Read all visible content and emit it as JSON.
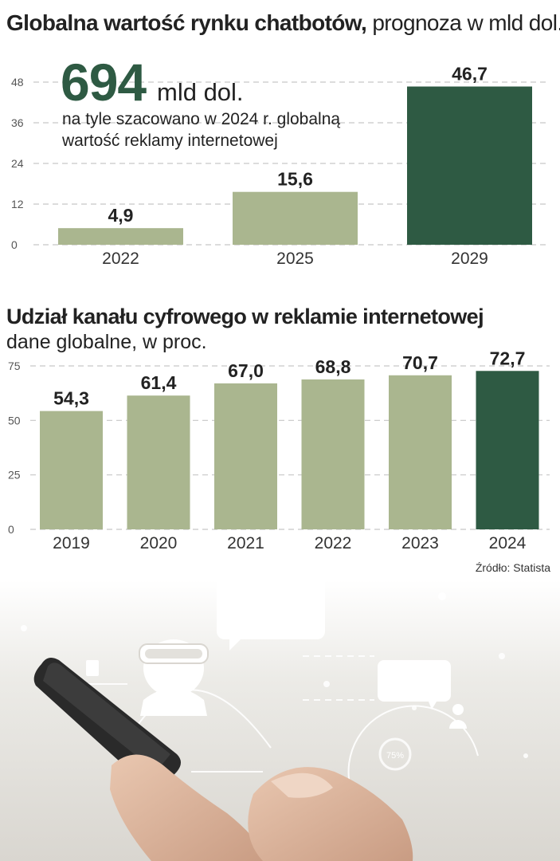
{
  "chart1_title_bold": "Globalna wartość rynku chatbotów,",
  "chart1_title_rest": " prognoza w mld dol.",
  "callout": {
    "value": "694",
    "unit": "mld dol.",
    "text": "na tyle szacowano w 2024 r. globalną wartość reklamy internetowej"
  },
  "chart2_title": "Udział kanału cyfrowego w reklamie internetowej",
  "chart2_subtitle": "dane globalne, w proc.",
  "source": "Źródło: Statista",
  "illustration_badge": "75%",
  "colors": {
    "light_bar": "#aab68f",
    "dark_bar": "#2e5a43",
    "grid": "#c8c8c8"
  },
  "chart_data": [
    {
      "type": "bar",
      "categories": [
        "2022",
        "2025",
        "2029"
      ],
      "values": [
        4.9,
        15.6,
        46.7
      ],
      "value_labels": [
        "4,9",
        "15,6",
        "46,7"
      ],
      "ylim": [
        0,
        48
      ],
      "yticks": [
        0,
        12,
        24,
        36,
        48
      ],
      "highlight_index": 2,
      "grid": true
    },
    {
      "type": "bar",
      "categories": [
        "2019",
        "2020",
        "2021",
        "2022",
        "2023",
        "2024"
      ],
      "values": [
        54.3,
        61.4,
        67.0,
        68.8,
        70.7,
        72.7
      ],
      "value_labels": [
        "54,3",
        "61,4",
        "67,0",
        "68,8",
        "70,7",
        "72,7"
      ],
      "ylim": [
        0,
        75
      ],
      "yticks": [
        0,
        25,
        50,
        75
      ],
      "highlight_index": 5,
      "grid": true
    }
  ]
}
